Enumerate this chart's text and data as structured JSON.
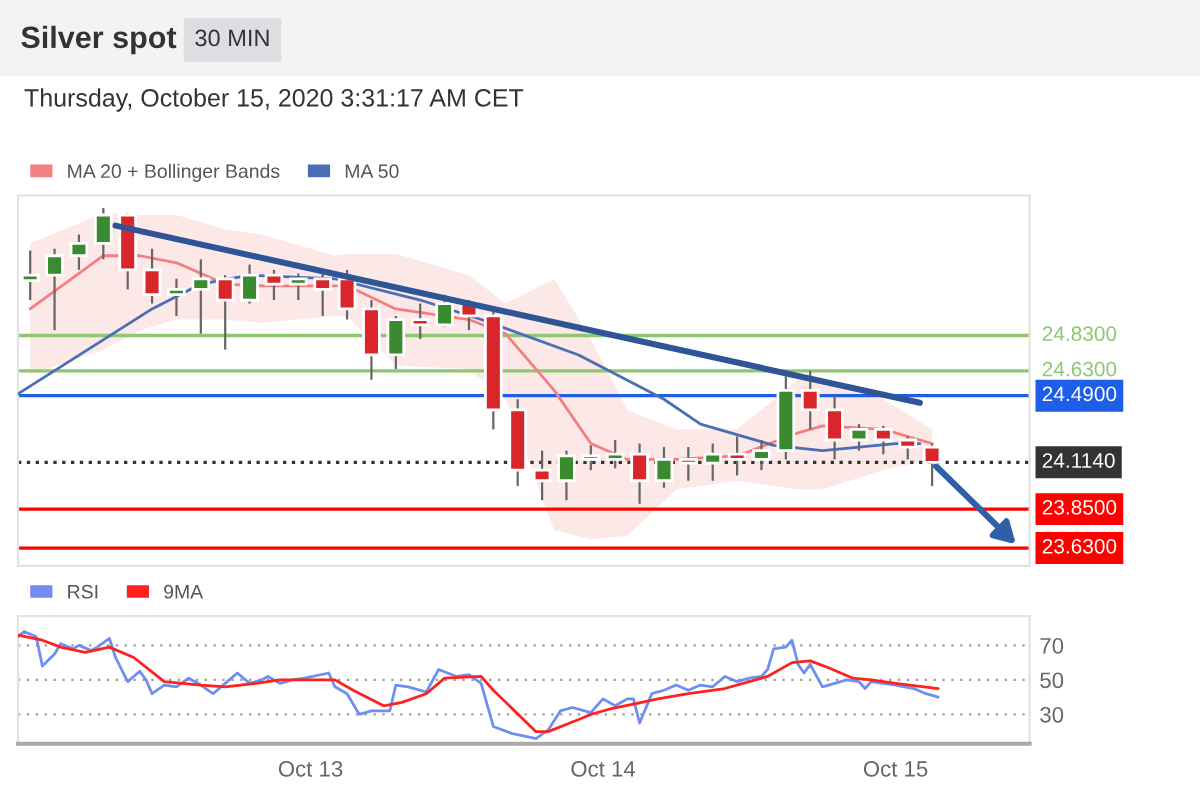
{
  "chart_data": [
    {
      "type": "candlestick",
      "title": "Silver spot",
      "subtitle": "Thursday, October 15, 2020 3:31:17 AM CET",
      "annotations": [
        "30 MIN"
      ],
      "x": [
        "2020-10-12T01:00",
        "2020-10-12T03:00",
        "2020-10-12T05:00",
        "2020-10-12T07:00",
        "2020-10-12T09:00",
        "2020-10-12T11:00",
        "2020-10-12T13:00",
        "2020-10-12T15:00",
        "2020-10-12T17:00",
        "2020-10-12T19:00",
        "2020-10-12T21:00",
        "2020-10-12T23:00",
        "2020-10-13T01:00",
        "2020-10-13T03:00",
        "2020-10-13T05:00",
        "2020-10-13T07:00",
        "2020-10-13T09:00",
        "2020-10-13T11:00",
        "2020-10-13T13:00",
        "2020-10-13T15:00",
        "2020-10-13T17:00",
        "2020-10-13T19:00",
        "2020-10-13T21:00",
        "2020-10-13T23:00",
        "2020-10-14T01:00",
        "2020-10-14T03:00",
        "2020-10-14T05:00",
        "2020-10-14T07:00",
        "2020-10-14T09:00",
        "2020-10-14T11:00",
        "2020-10-14T13:00",
        "2020-10-14T15:00",
        "2020-10-14T17:00",
        "2020-10-14T19:00",
        "2020-10-14T21:00",
        "2020-10-14T23:00",
        "2020-10-15T01:00",
        "2020-10-15T03:00"
      ],
      "ohlc": [
        [
          25.14,
          25.31,
          25.03,
          25.17
        ],
        [
          25.17,
          25.32,
          24.86,
          25.28
        ],
        [
          25.28,
          25.4,
          25.2,
          25.35
        ],
        [
          25.35,
          25.55,
          25.26,
          25.51
        ],
        [
          25.51,
          25.52,
          25.09,
          25.2
        ],
        [
          25.2,
          25.32,
          25.01,
          25.06
        ],
        [
          25.06,
          25.15,
          24.94,
          25.09
        ],
        [
          25.09,
          25.26,
          24.84,
          25.15
        ],
        [
          25.15,
          25.17,
          24.75,
          25.03
        ],
        [
          25.03,
          25.23,
          25.01,
          25.17
        ],
        [
          25.17,
          25.2,
          25.03,
          25.12
        ],
        [
          25.12,
          25.18,
          25.03,
          25.15
        ],
        [
          25.15,
          25.2,
          24.94,
          25.09
        ],
        [
          25.15,
          25.2,
          24.92,
          24.98
        ],
        [
          24.98,
          25.03,
          24.58,
          24.72
        ],
        [
          24.72,
          24.94,
          24.64,
          24.92
        ],
        [
          24.92,
          25.01,
          24.81,
          24.89
        ],
        [
          24.89,
          25.06,
          24.88,
          25.01
        ],
        [
          25.01,
          25.03,
          24.86,
          24.94
        ],
        [
          24.94,
          24.98,
          24.3,
          24.41
        ],
        [
          24.41,
          24.47,
          23.98,
          24.07
        ],
        [
          24.07,
          24.18,
          23.9,
          24.01
        ],
        [
          24.01,
          24.18,
          23.9,
          24.15
        ],
        [
          24.15,
          24.21,
          24.07,
          24.13
        ],
        [
          24.13,
          24.24,
          24.08,
          24.16
        ],
        [
          24.16,
          24.22,
          23.88,
          24.01
        ],
        [
          24.01,
          24.2,
          23.97,
          24.13
        ],
        [
          24.13,
          24.2,
          24.01,
          24.11
        ],
        [
          24.11,
          24.22,
          24.01,
          24.16
        ],
        [
          24.16,
          24.26,
          24.04,
          24.13
        ],
        [
          24.13,
          24.24,
          24.07,
          24.18
        ],
        [
          24.18,
          24.6,
          24.13,
          24.52
        ],
        [
          24.52,
          24.63,
          24.3,
          24.41
        ],
        [
          24.41,
          24.49,
          24.13,
          24.24
        ],
        [
          24.24,
          24.33,
          24.18,
          24.3
        ],
        [
          24.3,
          24.32,
          24.16,
          24.24
        ],
        [
          24.24,
          24.26,
          24.13,
          24.2
        ],
        [
          24.2,
          24.22,
          23.98,
          24.114
        ]
      ],
      "series": [
        {
          "name": "MA 20 + Bollinger Bands",
          "type": "line",
          "color": "#f28080",
          "x": [
            "2020-10-12T01:00",
            "2020-10-12T07:00",
            "2020-10-12T10:00",
            "2020-10-12T13:00",
            "2020-10-12T17:00",
            "2020-10-12T20:00",
            "2020-10-13T02:00",
            "2020-10-13T03:00",
            "2020-10-13T07:00",
            "2020-10-13T13:00",
            "2020-10-13T16:00",
            "2020-10-13T20:00",
            "2020-10-13T23:00",
            "2020-10-14T02:00",
            "2020-10-14T06:00",
            "2020-10-14T11:00",
            "2020-10-14T16:00",
            "2020-10-14T18:00",
            "2020-10-14T23:00",
            "2020-10-15T03:00"
          ],
          "values": [
            24.98,
            25.28,
            25.28,
            25.24,
            25.12,
            25.11,
            25.11,
            25.11,
            24.98,
            24.92,
            24.84,
            24.52,
            24.22,
            24.13,
            24.13,
            24.15,
            24.28,
            24.32,
            24.3,
            24.22
          ],
          "upper": [
            25.35,
            25.52,
            25.51,
            25.51,
            25.43,
            25.4,
            25.28,
            25.29,
            25.29,
            25.17,
            25.01,
            25.15,
            24.81,
            24.41,
            24.3,
            24.3,
            24.58,
            24.58,
            24.47,
            24.3
          ],
          "lower": [
            24.61,
            24.75,
            24.86,
            24.92,
            24.92,
            24.9,
            24.94,
            24.94,
            24.66,
            24.64,
            24.47,
            23.73,
            23.68,
            23.7,
            23.96,
            24.01,
            23.96,
            23.96,
            24.07,
            24.13
          ]
        },
        {
          "name": "MA 50",
          "type": "line",
          "color": "#4a6fb5",
          "x": [
            "2020-10-12T00:00",
            "2020-10-12T11:00",
            "2020-10-12T15:00",
            "2020-10-12T19:00",
            "2020-10-13T02:00",
            "2020-10-13T09:00",
            "2020-10-13T14:00",
            "2020-10-13T22:00",
            "2020-10-14T05:00",
            "2020-10-14T08:00",
            "2020-10-14T14:00",
            "2020-10-14T18:00",
            "2020-10-15T00:00",
            "2020-10-15T02:00"
          ],
          "values": [
            24.5,
            24.98,
            25.12,
            25.17,
            25.15,
            25.03,
            24.92,
            24.72,
            24.47,
            24.33,
            24.21,
            24.18,
            24.22,
            24.22
          ]
        },
        {
          "type": "line",
          "color": "#2f5597",
          "x": [
            "2020-10-12T08:00",
            "2020-10-15T02:00"
          ],
          "values": [
            25.45,
            24.45
          ]
        }
      ],
      "ref_lines": [
        {
          "axis": "y",
          "value": 24.83,
          "label": "24.8300",
          "color": "#8cc870"
        },
        {
          "axis": "y",
          "value": 24.63,
          "label": "24.6300",
          "color": "#8cc870"
        },
        {
          "axis": "y",
          "value": 24.49,
          "label": "24.4900",
          "color": "#1f5fe8"
        },
        {
          "axis": "y",
          "value": 24.114,
          "label": "24.1140",
          "color": "#333333",
          "line_style": "dotted"
        },
        {
          "axis": "y",
          "value": 23.85,
          "label": "23.8500",
          "color": "#ff0000"
        },
        {
          "axis": "y",
          "value": 23.63,
          "label": "23.6300",
          "color": "#ff0000"
        }
      ],
      "xlim": [
        "2020-10-12T00:00",
        "2020-10-15T11:00"
      ],
      "ylim": [
        23.53,
        25.62
      ],
      "tick_labels": false,
      "legend": "top left"
    },
    {
      "type": "line",
      "series": [
        {
          "name": "RSI",
          "color": "#6f8ff0",
          "x": [
            "2020-10-12T00:00",
            "2020-10-12T00:30",
            "2020-10-12T01:30",
            "2020-10-12T02:00",
            "2020-10-12T03:00",
            "2020-10-12T03:30",
            "2020-10-12T04:30",
            "2020-10-12T05:00",
            "2020-10-12T06:00",
            "2020-10-12T06:30",
            "2020-10-12T07:30",
            "2020-10-12T08:00",
            "2020-10-12T09:00",
            "2020-10-12T10:00",
            "2020-10-12T10:30",
            "2020-10-12T11:00",
            "2020-10-12T12:00",
            "2020-10-12T13:00",
            "2020-10-12T14:00",
            "2020-10-12T15:00",
            "2020-10-12T16:00",
            "2020-10-12T17:00",
            "2020-10-12T18:00",
            "2020-10-12T19:00",
            "2020-10-12T20:00",
            "2020-10-12T20:30",
            "2020-10-12T21:30",
            "2020-10-12T22:30",
            "2020-10-12T23:30",
            "2020-10-13T01:30",
            "2020-10-13T02:00",
            "2020-10-13T03:00",
            "2020-10-13T04:00",
            "2020-10-13T05:00",
            "2020-10-13T06:30",
            "2020-10-13T07:00",
            "2020-10-13T08:00",
            "2020-10-13T09:30",
            "2020-10-13T10:30",
            "2020-10-13T12:00",
            "2020-10-13T13:00",
            "2020-10-13T14:00",
            "2020-10-13T15:00",
            "2020-10-13T16:30",
            "2020-10-13T18:30",
            "2020-10-13T19:30",
            "2020-10-13T20:30",
            "2020-10-13T21:30",
            "2020-10-13T23:00",
            "2020-10-14T00:00",
            "2020-10-14T01:00",
            "2020-10-14T02:00",
            "2020-10-14T02:30",
            "2020-10-14T03:00",
            "2020-10-14T04:00",
            "2020-10-14T05:00",
            "2020-10-14T06:00",
            "2020-10-14T07:00",
            "2020-10-14T08:00",
            "2020-10-14T09:00",
            "2020-10-14T10:00",
            "2020-10-14T11:00",
            "2020-10-14T12:00",
            "2020-10-14T13:00",
            "2020-10-14T13:30",
            "2020-10-14T14:00",
            "2020-10-14T15:00",
            "2020-10-14T15:30",
            "2020-10-14T16:00",
            "2020-10-14T16:30",
            "2020-10-14T17:00",
            "2020-10-14T18:00",
            "2020-10-14T18:30",
            "2020-10-14T20:00",
            "2020-10-14T21:00",
            "2020-10-14T21:30",
            "2020-10-14T22:00",
            "2020-10-14T23:00",
            "2020-10-15T00:00",
            "2020-10-15T01:30",
            "2020-10-15T02:30",
            "2020-10-15T03:30"
          ],
          "values": [
            75,
            78,
            75,
            58,
            65,
            71,
            68,
            70,
            67,
            69,
            74,
            63,
            49,
            55,
            50,
            42,
            47,
            46,
            51,
            47,
            42,
            48,
            54,
            48,
            50,
            52,
            48,
            50,
            51,
            54,
            46,
            42,
            30,
            32,
            32,
            47,
            46,
            43,
            56,
            52,
            53,
            48,
            23,
            19,
            16,
            21,
            32,
            34,
            31,
            39,
            35,
            39,
            39,
            25,
            42,
            44,
            47,
            44,
            47,
            46,
            52,
            49,
            51,
            52,
            56,
            68,
            69,
            73,
            59,
            54,
            59,
            46,
            47,
            50,
            49,
            45,
            49,
            48,
            47,
            45,
            42,
            40
          ]
        },
        {
          "name": "9MA",
          "color": "#ff2020",
          "x": [
            "2020-10-12T00:00",
            "2020-10-12T02:00",
            "2020-10-12T03:30",
            "2020-10-12T05:30",
            "2020-10-12T07:30",
            "2020-10-12T09:30",
            "2020-10-12T12:00",
            "2020-10-12T15:00",
            "2020-10-12T17:00",
            "2020-10-12T19:30",
            "2020-10-12T21:30",
            "2020-10-12T23:30",
            "2020-10-13T02:00",
            "2020-10-13T03:30",
            "2020-10-13T06:00",
            "2020-10-13T07:30",
            "2020-10-13T09:30",
            "2020-10-13T11:00",
            "2020-10-13T14:00",
            "2020-10-13T15:00",
            "2020-10-13T18:30",
            "2020-10-13T19:30",
            "2020-10-13T22:00",
            "2020-10-13T23:00",
            "2020-10-14T00:30",
            "2020-10-14T02:30",
            "2020-10-14T04:30",
            "2020-10-14T07:00",
            "2020-10-14T10:00",
            "2020-10-14T13:30",
            "2020-10-14T15:30",
            "2020-10-14T17:00",
            "2020-10-14T18:30",
            "2020-10-14T20:30",
            "2020-10-14T22:00",
            "2020-10-15T00:00",
            "2020-10-15T03:30"
          ],
          "values": [
            76,
            73,
            69,
            66,
            69,
            63,
            49,
            47,
            46,
            48,
            50,
            50,
            50,
            44,
            35,
            37,
            42,
            51,
            52,
            44,
            20,
            20,
            27,
            30,
            33,
            36,
            39,
            42,
            45,
            52,
            60,
            61,
            57,
            51,
            50,
            48,
            45
          ]
        }
      ],
      "xlim": [
        "2020-10-12T00:00",
        "2020-10-15T11:00"
      ],
      "xticks": [
        {
          "value": "2020-10-13",
          "label": "Oct 13"
        },
        {
          "value": "2020-10-14",
          "label": "Oct 14"
        },
        {
          "value": "2020-10-15",
          "label": "Oct 15"
        }
      ],
      "ylim": [
        13,
        87
      ],
      "yticks": [
        30,
        50,
        70
      ],
      "grid": "y",
      "legend": "top left"
    }
  ]
}
